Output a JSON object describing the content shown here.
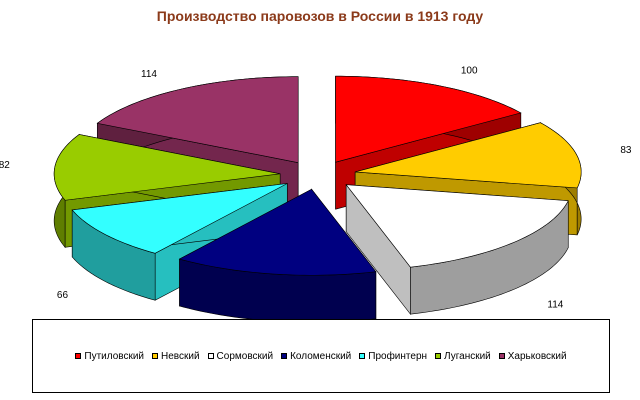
{
  "chart_data": {
    "type": "pie",
    "title": "Производство паровозов в России в 1913 году",
    "three_d": true,
    "exploded": true,
    "legend_position": "bottom",
    "categories": [
      "Путиловский",
      "Невский",
      "Сормовский",
      "Коломенский",
      "Профинтерн",
      "Луганский",
      "Харьковский"
    ],
    "values": [
      100,
      83,
      114,
      95,
      66,
      82,
      114
    ],
    "colors": [
      "#ff0000",
      "#ffcc00",
      "#ffffff",
      "#000080",
      "#33ffff",
      "#99cc00",
      "#993366"
    ]
  }
}
